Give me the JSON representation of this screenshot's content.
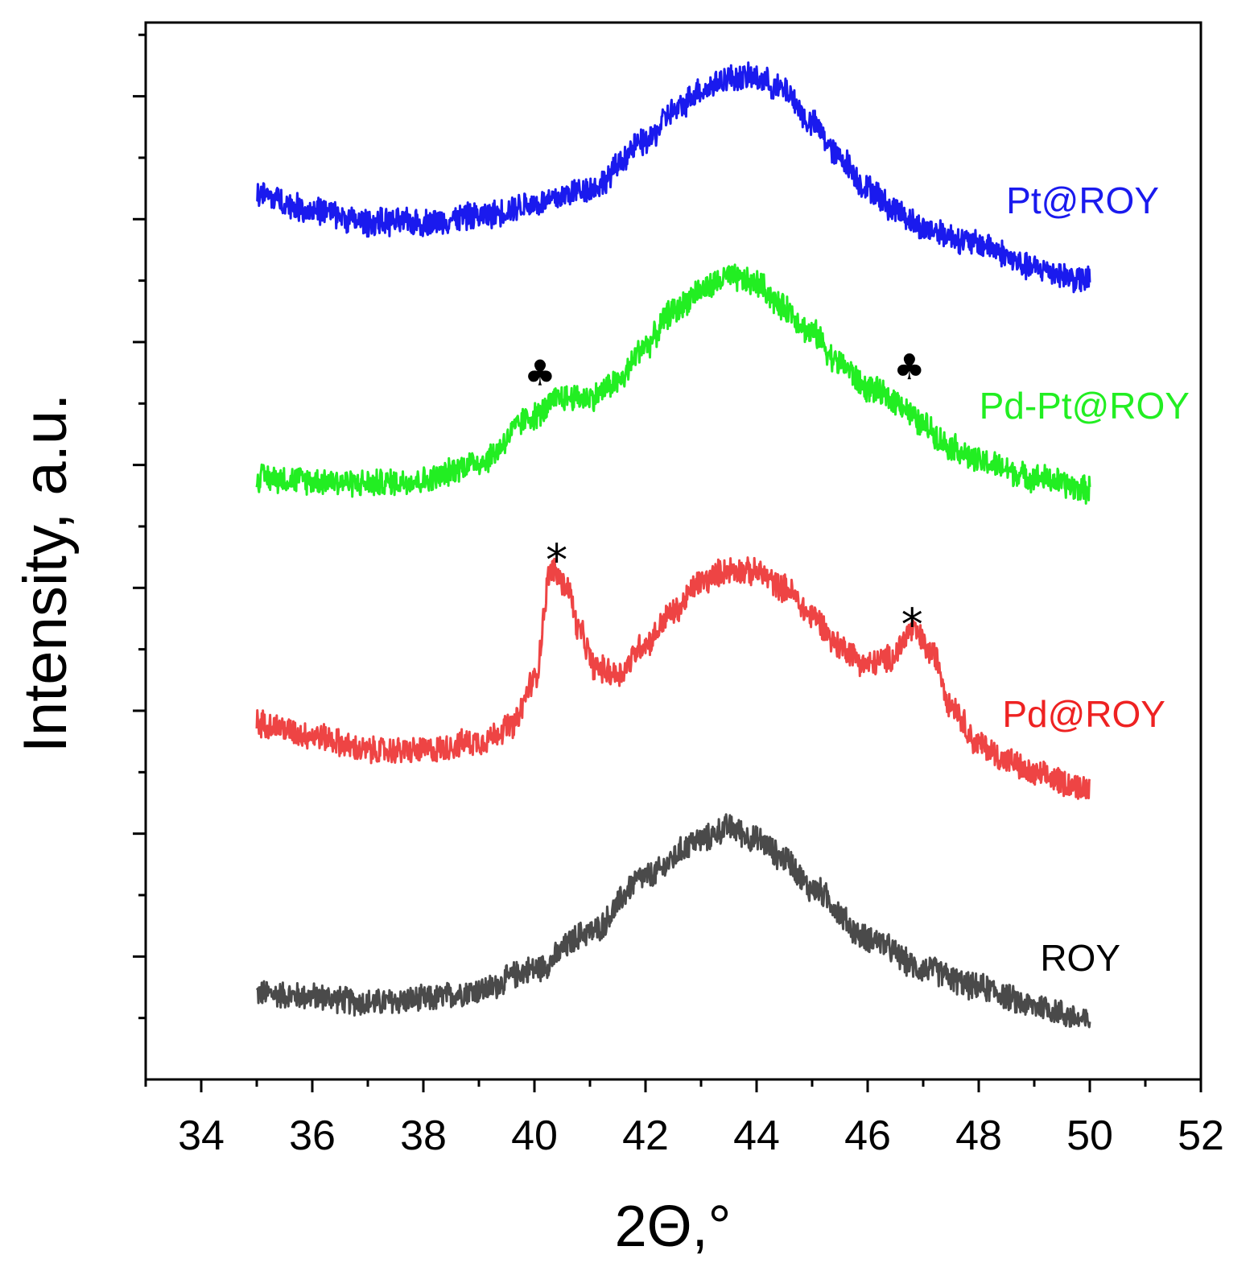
{
  "chart_data": {
    "type": "line",
    "title": "",
    "xlabel": "2Θ,°",
    "ylabel": "Intensity, a.u.",
    "xlim": [
      33,
      52
    ],
    "ylim": [
      0,
      17.2
    ],
    "x_ticks": [
      34,
      36,
      38,
      40,
      42,
      44,
      46,
      48,
      50,
      52
    ],
    "x_tick_labels": [
      "34",
      "36",
      "38",
      "40",
      "42",
      "44",
      "46",
      "48",
      "50",
      "52"
    ],
    "y_tick_labels_shown": false,
    "legend": "inline labels at right of each trace",
    "series": [
      {
        "name": "ROY",
        "color": "#4a4a4a",
        "noise": 0.25,
        "points": [
          [
            35.0,
            1.4
          ],
          [
            36.0,
            1.35
          ],
          [
            37.0,
            1.25
          ],
          [
            38.0,
            1.3
          ],
          [
            39.0,
            1.45
          ],
          [
            40.0,
            1.8
          ],
          [
            41.0,
            2.4
          ],
          [
            42.0,
            3.3
          ],
          [
            43.0,
            3.9
          ],
          [
            43.5,
            4.1
          ],
          [
            44.0,
            3.9
          ],
          [
            44.5,
            3.6
          ],
          [
            45.0,
            3.1
          ],
          [
            46.0,
            2.3
          ],
          [
            47.0,
            1.8
          ],
          [
            48.0,
            1.5
          ],
          [
            49.0,
            1.2
          ],
          [
            50.0,
            0.95
          ]
        ]
      },
      {
        "name": "Pd@ROY",
        "color": "#ee4444",
        "noise": 0.25,
        "points": [
          [
            35.0,
            5.8
          ],
          [
            36.0,
            5.6
          ],
          [
            37.0,
            5.35
          ],
          [
            38.0,
            5.35
          ],
          [
            39.0,
            5.5
          ],
          [
            39.6,
            5.75
          ],
          [
            40.0,
            6.5
          ],
          [
            40.3,
            8.3
          ],
          [
            40.6,
            8.0
          ],
          [
            40.8,
            7.3
          ],
          [
            41.1,
            6.7
          ],
          [
            41.5,
            6.6
          ],
          [
            42.0,
            7.1
          ],
          [
            42.5,
            7.6
          ],
          [
            43.0,
            8.1
          ],
          [
            43.5,
            8.3
          ],
          [
            44.0,
            8.25
          ],
          [
            44.5,
            8.0
          ],
          [
            45.0,
            7.55
          ],
          [
            45.5,
            7.05
          ],
          [
            46.0,
            6.75
          ],
          [
            46.4,
            6.85
          ],
          [
            46.8,
            7.3
          ],
          [
            47.2,
            6.9
          ],
          [
            47.5,
            6.1
          ],
          [
            48.0,
            5.45
          ],
          [
            48.5,
            5.2
          ],
          [
            49.0,
            4.95
          ],
          [
            50.0,
            4.75
          ]
        ]
      },
      {
        "name": "Pd-Pt@ROY",
        "color": "#22ee22",
        "noise": 0.25,
        "points": [
          [
            35.0,
            9.8
          ],
          [
            36.0,
            9.75
          ],
          [
            37.0,
            9.7
          ],
          [
            38.0,
            9.75
          ],
          [
            39.0,
            10.05
          ],
          [
            40.0,
            10.8
          ],
          [
            40.5,
            11.1
          ],
          [
            41.0,
            11.1
          ],
          [
            41.5,
            11.35
          ],
          [
            42.0,
            11.95
          ],
          [
            42.5,
            12.5
          ],
          [
            43.0,
            12.85
          ],
          [
            43.5,
            13.05
          ],
          [
            44.0,
            12.95
          ],
          [
            44.5,
            12.55
          ],
          [
            45.0,
            12.15
          ],
          [
            45.5,
            11.65
          ],
          [
            46.0,
            11.25
          ],
          [
            46.5,
            11.05
          ],
          [
            47.0,
            10.65
          ],
          [
            47.5,
            10.3
          ],
          [
            48.0,
            10.05
          ],
          [
            49.0,
            9.8
          ],
          [
            50.0,
            9.6
          ]
        ]
      },
      {
        "name": "Pt@ROY",
        "color": "#1a1aee",
        "noise": 0.25,
        "points": [
          [
            35.0,
            14.4
          ],
          [
            36.0,
            14.15
          ],
          [
            37.0,
            13.95
          ],
          [
            38.0,
            13.95
          ],
          [
            39.0,
            14.05
          ],
          [
            40.0,
            14.25
          ],
          [
            41.0,
            14.5
          ],
          [
            42.0,
            15.25
          ],
          [
            42.5,
            15.75
          ],
          [
            43.0,
            16.1
          ],
          [
            43.5,
            16.3
          ],
          [
            44.0,
            16.3
          ],
          [
            44.5,
            16.1
          ],
          [
            45.0,
            15.55
          ],
          [
            45.5,
            15.0
          ],
          [
            46.0,
            14.5
          ],
          [
            46.5,
            14.15
          ],
          [
            47.0,
            13.85
          ],
          [
            48.0,
            13.6
          ],
          [
            49.0,
            13.2
          ],
          [
            50.0,
            13.0
          ]
        ]
      }
    ],
    "series_labels": [
      {
        "text": "Pt@ROY",
        "color": "#1a1aee"
      },
      {
        "text": "Pd-Pt@ROY",
        "color": "#22ee22"
      },
      {
        "text": "Pd@ROY",
        "color": "#ee2222"
      },
      {
        "text": "ROY",
        "color": "#000000"
      }
    ],
    "annotations": [
      {
        "symbol": "♣",
        "x": 40.1,
        "y": 11.3
      },
      {
        "symbol": "♣",
        "x": 46.75,
        "y": 11.4
      },
      {
        "symbol": "*",
        "x": 40.4,
        "y": 8.55
      },
      {
        "symbol": "*",
        "x": 46.8,
        "y": 7.5
      }
    ]
  }
}
